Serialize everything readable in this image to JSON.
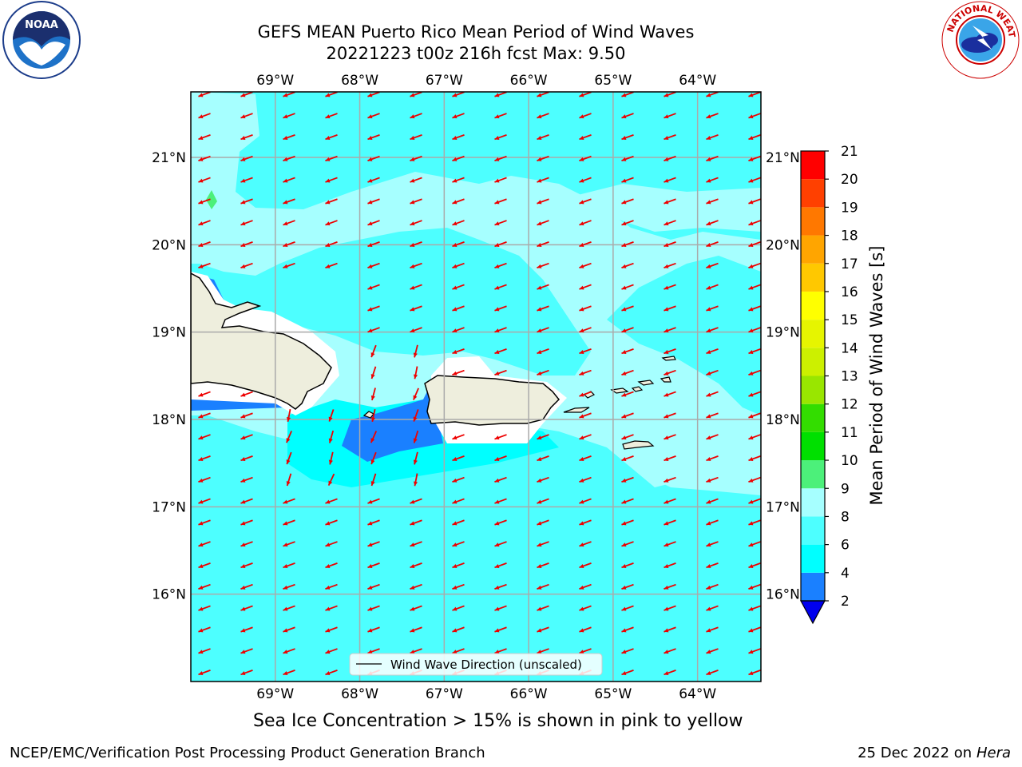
{
  "title": {
    "line1": "GEFS MEAN Puerto Rico Mean Period of Wind Waves",
    "line2": "20221223 t00z 216h fcst   Max: 9.50"
  },
  "map": {
    "lon_ticks": [
      "69°W",
      "68°W",
      "67°W",
      "66°W",
      "65°W",
      "64°W"
    ],
    "lat_ticks": [
      "21°N",
      "20°N",
      "19°N",
      "18°N",
      "17°N",
      "16°N"
    ],
    "extent": {
      "lon_min": -70.0,
      "lon_max": -63.25,
      "lat_min": 15.0,
      "lat_max": 21.75
    },
    "arrow_direction": "southwest (wind waves travelling toward WSW)",
    "legend": "Wind Wave Direction (unscaled)",
    "background_color": "#4dffff",
    "land_color": "#eeeedd",
    "arrow_color": "#ee0000",
    "regions": [
      {
        "name": "light-cyan band",
        "period_bin": "8-9",
        "color": "#a6ffff"
      },
      {
        "name": "blue patch south of Mona Passage",
        "period_bin": "2-4",
        "color": "#1a80ff"
      },
      {
        "name": "green spot",
        "period_bin": "9-10",
        "color": "#4cf07a"
      }
    ]
  },
  "colorbar": {
    "label": "Mean Period of Wind Waves [s]",
    "ticks": [
      "2",
      "4",
      "6",
      "8",
      "9",
      "10",
      "11",
      "12",
      "13",
      "14",
      "15",
      "16",
      "17",
      "18",
      "19",
      "20",
      "21"
    ],
    "colors": [
      "#0000ee",
      "#1a80ff",
      "#00ffff",
      "#4dffff",
      "#a6ffff",
      "#4cf07a",
      "#00e000",
      "#33dd00",
      "#99e600",
      "#ccf000",
      "#e6f500",
      "#ffff00",
      "#ffc800",
      "#ffa500",
      "#ff7800",
      "#ff4000",
      "#ff0000"
    ]
  },
  "ice_note": "Sea Ice Concentration > 15% is shown in pink to yellow",
  "footer": {
    "left": "NCEP/EMC/Verification Post Processing Product Generation Branch",
    "right_date": "25 Dec 2022 on",
    "right_host": "Hera"
  },
  "logos": {
    "noaa": "NOAA",
    "nws": "NATIONAL WEATHER SERVICE"
  }
}
